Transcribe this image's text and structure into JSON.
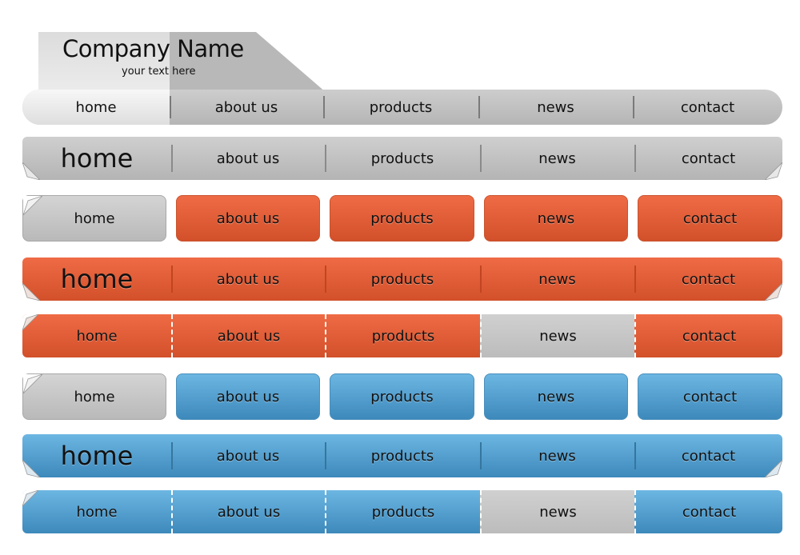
{
  "header": {
    "company_name": "Company Name",
    "tagline": "your text here"
  },
  "menu_labels": {
    "home": "home",
    "about": "about us",
    "products": "products",
    "news": "news",
    "contact": "contact"
  },
  "colors": {
    "grey": "#c4c4c4",
    "orange": "#e15c36",
    "blue": "#4f9fcf",
    "divider_dash": "#ffffff"
  },
  "icons": [
    "page-curl-icon"
  ]
}
